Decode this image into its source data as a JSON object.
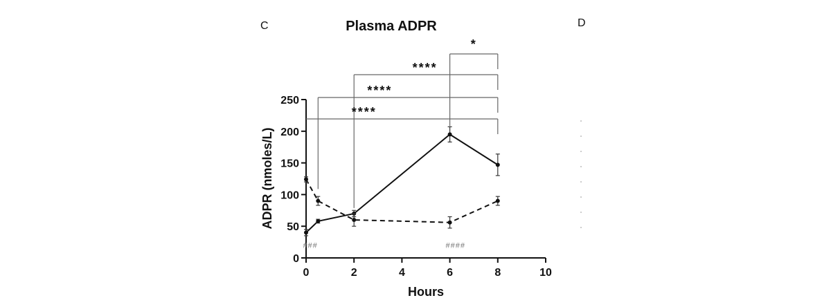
{
  "panel_labels": {
    "left": "C",
    "right": "D"
  },
  "chart_data": {
    "type": "line",
    "title": "Plasma ADPR",
    "xlabel": "Hours",
    "ylabel": "ADPR (nmoles/L)",
    "xlim": [
      0,
      10
    ],
    "ylim": [
      0,
      250
    ],
    "xticks": [
      0,
      2,
      4,
      6,
      8,
      10
    ],
    "yticks": [
      0,
      50,
      100,
      150,
      200,
      250
    ],
    "grid": false,
    "series": [
      {
        "style": "solid",
        "x": [
          0,
          0.5,
          2,
          6,
          8
        ],
        "y": [
          40,
          58,
          70,
          195,
          147
        ],
        "err": [
          5,
          3,
          5,
          12,
          17
        ]
      },
      {
        "style": "dashed",
        "x": [
          0,
          0.5,
          2,
          6,
          8
        ],
        "y": [
          124,
          90,
          60,
          56,
          90
        ],
        "err": [
          4,
          7,
          10,
          9,
          7
        ]
      }
    ],
    "significance": [
      {
        "from": 6,
        "to": 8,
        "label": "*"
      },
      {
        "from": 2,
        "to": 8,
        "label": "****"
      },
      {
        "from": 0.5,
        "to": 8,
        "label": "****"
      },
      {
        "from": 0,
        "to": 8,
        "label": "****"
      }
    ],
    "annotations": [
      {
        "x": 0,
        "label": "###"
      },
      {
        "x": 6,
        "label": "####"
      }
    ]
  }
}
